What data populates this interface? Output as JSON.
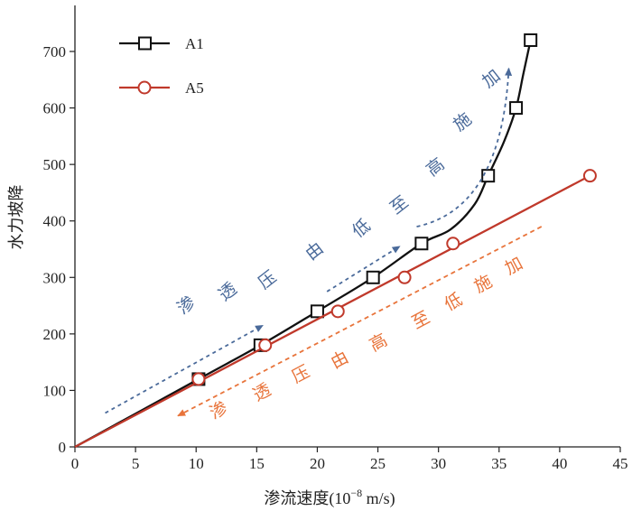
{
  "chart_data": {
    "type": "line",
    "xlabel": "渗流速度(10",
    "xlabel_sup": "−8",
    "xlabel_unit": " m/s)",
    "ylabel": "水力坡降",
    "xlim": [
      0,
      45
    ],
    "ylim": [
      0,
      750
    ],
    "xticks": [
      0,
      5,
      10,
      15,
      20,
      25,
      30,
      35,
      40,
      45
    ],
    "yticks": [
      0,
      100,
      200,
      300,
      400,
      500,
      600,
      700
    ],
    "legend_position": "top-left",
    "series": [
      {
        "name": "A1",
        "color": "#111111",
        "marker": "square",
        "points": [
          [
            10.2,
            120
          ],
          [
            15.3,
            180
          ],
          [
            20.0,
            240
          ],
          [
            24.6,
            300
          ],
          [
            28.6,
            360
          ],
          [
            34.1,
            480
          ],
          [
            36.4,
            600
          ],
          [
            37.6,
            720
          ]
        ],
        "curve_through": [
          [
            0,
            0
          ],
          [
            10.2,
            120
          ],
          [
            15.3,
            180
          ],
          [
            20.0,
            240
          ],
          [
            24.6,
            300
          ],
          [
            28.6,
            360
          ],
          [
            31.0,
            385
          ],
          [
            33.0,
            430
          ],
          [
            34.1,
            480
          ],
          [
            35.4,
            540
          ],
          [
            36.4,
            600
          ],
          [
            37.0,
            660
          ],
          [
            37.6,
            720
          ]
        ]
      },
      {
        "name": "A5",
        "color": "#c0392b",
        "marker": "circle",
        "points": [
          [
            10.2,
            120
          ],
          [
            15.7,
            180
          ],
          [
            21.7,
            240
          ],
          [
            27.2,
            300
          ],
          [
            31.2,
            360
          ],
          [
            42.5,
            480
          ]
        ],
        "curve_through": [
          [
            0,
            0
          ],
          [
            42.5,
            480
          ]
        ]
      }
    ],
    "annotations": [
      {
        "text": "渗透压由低至高施加",
        "color": "#4a6a9a",
        "arrows": [
          {
            "from": [
              2.5,
              60
            ],
            "to": [
              15.5,
              215
            ]
          },
          {
            "from": [
              20.8,
              275
            ],
            "to": [
              26.8,
              355
            ]
          },
          {
            "from": [
              28.2,
              390
            ],
            "to": [
              35.8,
              670
            ],
            "curved": true
          }
        ]
      },
      {
        "text": "渗透压由高至低施加",
        "color": "#e8743b",
        "arrows": [
          {
            "from": [
              38.5,
              390
            ],
            "to": [
              8.5,
              55
            ]
          }
        ]
      }
    ]
  }
}
